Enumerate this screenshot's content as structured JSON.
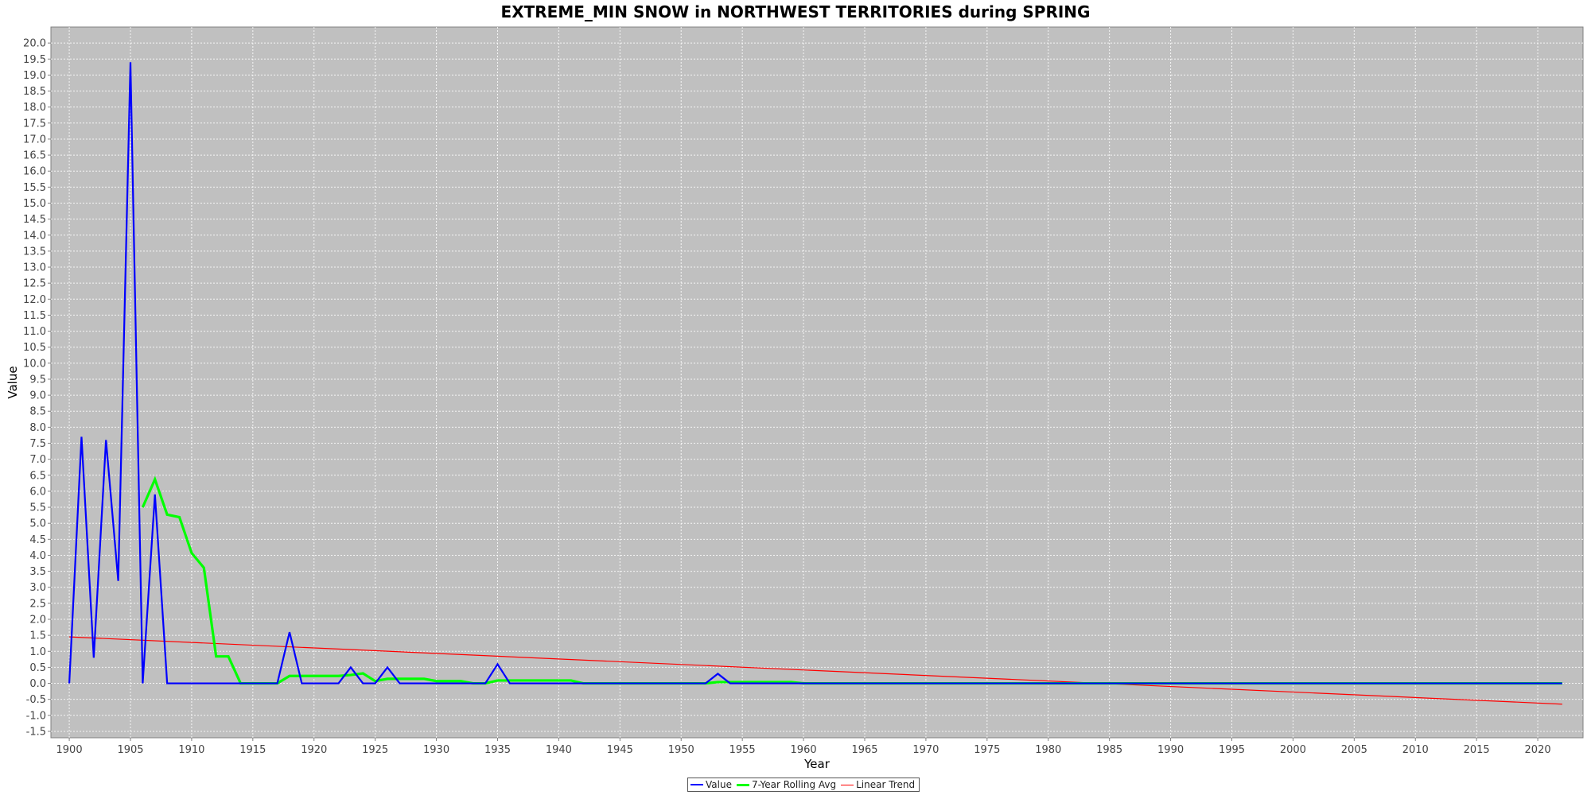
{
  "chart_data": {
    "type": "line",
    "title": "EXTREME_MIN SNOW in NORTHWEST TERRITORIES during SPRING",
    "xlabel": "Year",
    "ylabel": "Value",
    "xlim": [
      1898.5,
      2023.7
    ],
    "ylim": [
      -1.7,
      20.5
    ],
    "x_ticks": [
      1900,
      1905,
      1910,
      1915,
      1920,
      1925,
      1930,
      1935,
      1940,
      1945,
      1950,
      1955,
      1960,
      1965,
      1970,
      1975,
      1980,
      1985,
      1990,
      1995,
      2000,
      2005,
      2010,
      2015,
      2020
    ],
    "y_ticks": [
      -1.5,
      -1.0,
      -0.5,
      0.0,
      0.5,
      1.0,
      1.5,
      2.0,
      2.5,
      3.0,
      3.5,
      4.0,
      4.5,
      5.0,
      5.5,
      6.0,
      6.5,
      7.0,
      7.5,
      8.0,
      8.5,
      9.0,
      9.5,
      10.0,
      10.5,
      11.0,
      11.5,
      12.0,
      12.5,
      13.0,
      13.5,
      14.0,
      14.5,
      15.0,
      15.5,
      16.0,
      16.5,
      17.0,
      17.5,
      18.0,
      18.5,
      19.0,
      19.5,
      20.0
    ],
    "grid": true,
    "legend_position": "bottom",
    "background": "#c0c0c0",
    "series": [
      {
        "name": "Value",
        "color": "#0000ff",
        "points": [
          [
            1900,
            0.0
          ],
          [
            1901,
            7.7
          ],
          [
            1902,
            0.8
          ],
          [
            1903,
            7.6
          ],
          [
            1904,
            3.2
          ],
          [
            1905,
            19.4
          ],
          [
            1906,
            0.0
          ],
          [
            1907,
            5.9
          ],
          [
            1908,
            0.0
          ],
          [
            1909,
            0.0
          ],
          [
            1910,
            0.0
          ],
          [
            1911,
            0.0
          ],
          [
            1912,
            0.0
          ],
          [
            1913,
            0.0
          ],
          [
            1914,
            0.0
          ],
          [
            1915,
            0.0
          ],
          [
            1916,
            0.0
          ],
          [
            1917,
            0.0
          ],
          [
            1918,
            1.6
          ],
          [
            1919,
            0.0
          ],
          [
            1920,
            0.0
          ],
          [
            1921,
            0.0
          ],
          [
            1922,
            0.0
          ],
          [
            1923,
            0.5
          ],
          [
            1924,
            0.0
          ],
          [
            1925,
            0.0
          ],
          [
            1926,
            0.5
          ],
          [
            1927,
            0.0
          ],
          [
            1928,
            0.0
          ],
          [
            1929,
            0.0
          ],
          [
            1930,
            0.0
          ],
          [
            1931,
            0.0
          ],
          [
            1932,
            0.0
          ],
          [
            1933,
            0.0
          ],
          [
            1934,
            0.0
          ],
          [
            1935,
            0.6
          ],
          [
            1936,
            0.0
          ],
          [
            1937,
            0.0
          ],
          [
            1938,
            0.0
          ],
          [
            1939,
            0.0
          ],
          [
            1940,
            0.0
          ],
          [
            1941,
            0.0
          ],
          [
            1942,
            0.0
          ],
          [
            1943,
            0.0
          ],
          [
            1944,
            0.0
          ],
          [
            1945,
            0.0
          ],
          [
            1946,
            0.0
          ],
          [
            1947,
            0.0
          ],
          [
            1948,
            0.0
          ],
          [
            1949,
            0.0
          ],
          [
            1950,
            0.0
          ],
          [
            1951,
            0.0
          ],
          [
            1952,
            0.0
          ],
          [
            1953,
            0.3
          ],
          [
            1954,
            0.0
          ],
          [
            1955,
            0.0
          ],
          [
            1956,
            0.0
          ],
          [
            1957,
            0.0
          ],
          [
            1958,
            0.0
          ],
          [
            1959,
            0.0
          ],
          [
            1960,
            0.0
          ],
          [
            1961,
            0.0
          ],
          [
            1962,
            0.0
          ],
          [
            1963,
            0.0
          ],
          [
            1964,
            0.0
          ],
          [
            1965,
            0.0
          ],
          [
            1966,
            0.0
          ],
          [
            1967,
            0.0
          ],
          [
            1968,
            0.0
          ],
          [
            1969,
            0.0
          ],
          [
            1970,
            0.0
          ],
          [
            1971,
            0.0
          ],
          [
            1972,
            0.0
          ],
          [
            1973,
            0.0
          ],
          [
            1974,
            0.0
          ],
          [
            1975,
            0.0
          ],
          [
            1976,
            0.0
          ],
          [
            1977,
            0.0
          ],
          [
            1978,
            0.0
          ],
          [
            1979,
            0.0
          ],
          [
            1980,
            0.0
          ],
          [
            1981,
            0.0
          ],
          [
            1982,
            0.0
          ],
          [
            1983,
            0.0
          ],
          [
            1984,
            0.0
          ],
          [
            1985,
            0.0
          ],
          [
            1986,
            0.0
          ],
          [
            1987,
            0.0
          ],
          [
            1988,
            0.0
          ],
          [
            1989,
            0.0
          ],
          [
            1990,
            0.0
          ],
          [
            1991,
            0.0
          ],
          [
            1992,
            0.0
          ],
          [
            1993,
            0.0
          ],
          [
            1994,
            0.0
          ],
          [
            1995,
            0.0
          ],
          [
            1996,
            0.0
          ],
          [
            1997,
            0.0
          ],
          [
            1998,
            0.0
          ],
          [
            1999,
            0.0
          ],
          [
            2000,
            0.0
          ],
          [
            2001,
            0.0
          ],
          [
            2002,
            0.0
          ],
          [
            2003,
            0.0
          ],
          [
            2004,
            0.0
          ],
          [
            2005,
            0.0
          ],
          [
            2006,
            0.0
          ],
          [
            2007,
            0.0
          ],
          [
            2008,
            0.0
          ],
          [
            2009,
            0.0
          ],
          [
            2010,
            0.0
          ],
          [
            2011,
            0.0
          ],
          [
            2012,
            0.0
          ],
          [
            2013,
            0.0
          ],
          [
            2014,
            0.0
          ],
          [
            2015,
            0.0
          ],
          [
            2016,
            0.0
          ],
          [
            2017,
            0.0
          ],
          [
            2018,
            0.0
          ],
          [
            2019,
            0.0
          ],
          [
            2020,
            0.0
          ],
          [
            2021,
            0.0
          ],
          [
            2022,
            0.0
          ]
        ]
      },
      {
        "name": "7-Year Rolling Avg",
        "color": "#00ff00",
        "points": [
          [
            1906,
            5.5
          ],
          [
            1907,
            6.37
          ],
          [
            1908,
            5.27
          ],
          [
            1909,
            5.19
          ],
          [
            1910,
            4.07
          ],
          [
            1911,
            3.61
          ],
          [
            1912,
            0.84
          ],
          [
            1913,
            0.84
          ],
          [
            1914,
            0.0
          ],
          [
            1915,
            0.0
          ],
          [
            1916,
            0.0
          ],
          [
            1917,
            0.0
          ],
          [
            1918,
            0.23
          ],
          [
            1919,
            0.23
          ],
          [
            1920,
            0.23
          ],
          [
            1921,
            0.23
          ],
          [
            1922,
            0.23
          ],
          [
            1923,
            0.26
          ],
          [
            1924,
            0.31
          ],
          [
            1925,
            0.07
          ],
          [
            1926,
            0.14
          ],
          [
            1927,
            0.14
          ],
          [
            1928,
            0.14
          ],
          [
            1929,
            0.14
          ],
          [
            1930,
            0.07
          ],
          [
            1931,
            0.07
          ],
          [
            1932,
            0.07
          ],
          [
            1933,
            0.0
          ],
          [
            1934,
            0.0
          ],
          [
            1935,
            0.09
          ],
          [
            1936,
            0.09
          ],
          [
            1937,
            0.09
          ],
          [
            1938,
            0.09
          ],
          [
            1939,
            0.09
          ],
          [
            1940,
            0.09
          ],
          [
            1941,
            0.09
          ],
          [
            1942,
            0.0
          ],
          [
            1943,
            0.0
          ],
          [
            1944,
            0.0
          ],
          [
            1945,
            0.0
          ],
          [
            1946,
            0.0
          ],
          [
            1947,
            0.0
          ],
          [
            1948,
            0.0
          ],
          [
            1949,
            0.0
          ],
          [
            1950,
            0.0
          ],
          [
            1951,
            0.0
          ],
          [
            1952,
            0.0
          ],
          [
            1953,
            0.04
          ],
          [
            1954,
            0.04
          ],
          [
            1955,
            0.04
          ],
          [
            1956,
            0.04
          ],
          [
            1957,
            0.04
          ],
          [
            1958,
            0.04
          ],
          [
            1959,
            0.04
          ],
          [
            1960,
            0.0
          ],
          [
            1961,
            0.0
          ],
          [
            1962,
            0.0
          ],
          [
            1963,
            0.0
          ],
          [
            1964,
            0.0
          ],
          [
            1965,
            0.0
          ],
          [
            1966,
            0.0
          ],
          [
            1967,
            0.0
          ],
          [
            1968,
            0.0
          ],
          [
            1969,
            0.0
          ],
          [
            1970,
            0.0
          ],
          [
            1971,
            0.0
          ],
          [
            1972,
            0.0
          ],
          [
            1973,
            0.0
          ],
          [
            1974,
            0.0
          ],
          [
            1975,
            0.0
          ],
          [
            1976,
            0.0
          ],
          [
            1977,
            0.0
          ],
          [
            1978,
            0.0
          ],
          [
            1979,
            0.0
          ],
          [
            1980,
            0.0
          ],
          [
            1981,
            0.0
          ],
          [
            1982,
            0.0
          ],
          [
            1983,
            0.0
          ],
          [
            1984,
            0.0
          ],
          [
            1985,
            0.0
          ],
          [
            1986,
            0.0
          ],
          [
            1987,
            0.0
          ],
          [
            1988,
            0.0
          ],
          [
            1989,
            0.0
          ],
          [
            1990,
            0.0
          ],
          [
            1991,
            0.0
          ],
          [
            1992,
            0.0
          ],
          [
            1993,
            0.0
          ],
          [
            1994,
            0.0
          ],
          [
            1995,
            0.0
          ],
          [
            1996,
            0.0
          ],
          [
            1997,
            0.0
          ],
          [
            1998,
            0.0
          ],
          [
            1999,
            0.0
          ],
          [
            2000,
            0.0
          ],
          [
            2001,
            0.0
          ],
          [
            2002,
            0.0
          ],
          [
            2003,
            0.0
          ],
          [
            2004,
            0.0
          ],
          [
            2005,
            0.0
          ],
          [
            2006,
            0.0
          ],
          [
            2007,
            0.0
          ],
          [
            2008,
            0.0
          ],
          [
            2009,
            0.0
          ],
          [
            2010,
            0.0
          ],
          [
            2011,
            0.0
          ],
          [
            2012,
            0.0
          ],
          [
            2013,
            0.0
          ],
          [
            2014,
            0.0
          ],
          [
            2015,
            0.0
          ],
          [
            2016,
            0.0
          ],
          [
            2017,
            0.0
          ],
          [
            2018,
            0.0
          ],
          [
            2019,
            0.0
          ],
          [
            2020,
            0.0
          ],
          [
            2021,
            0.0
          ],
          [
            2022,
            0.0
          ]
        ]
      },
      {
        "name": "Linear Trend",
        "color": "#ff0000",
        "points": [
          [
            1900,
            1.45
          ],
          [
            2022,
            -0.65
          ]
        ]
      }
    ]
  },
  "legend": {
    "items": [
      {
        "label": "Value",
        "color": "#0000ff"
      },
      {
        "label": "7-Year Rolling Avg",
        "color": "#00ff00"
      },
      {
        "label": "Linear Trend",
        "color": "#ff0000"
      }
    ]
  }
}
